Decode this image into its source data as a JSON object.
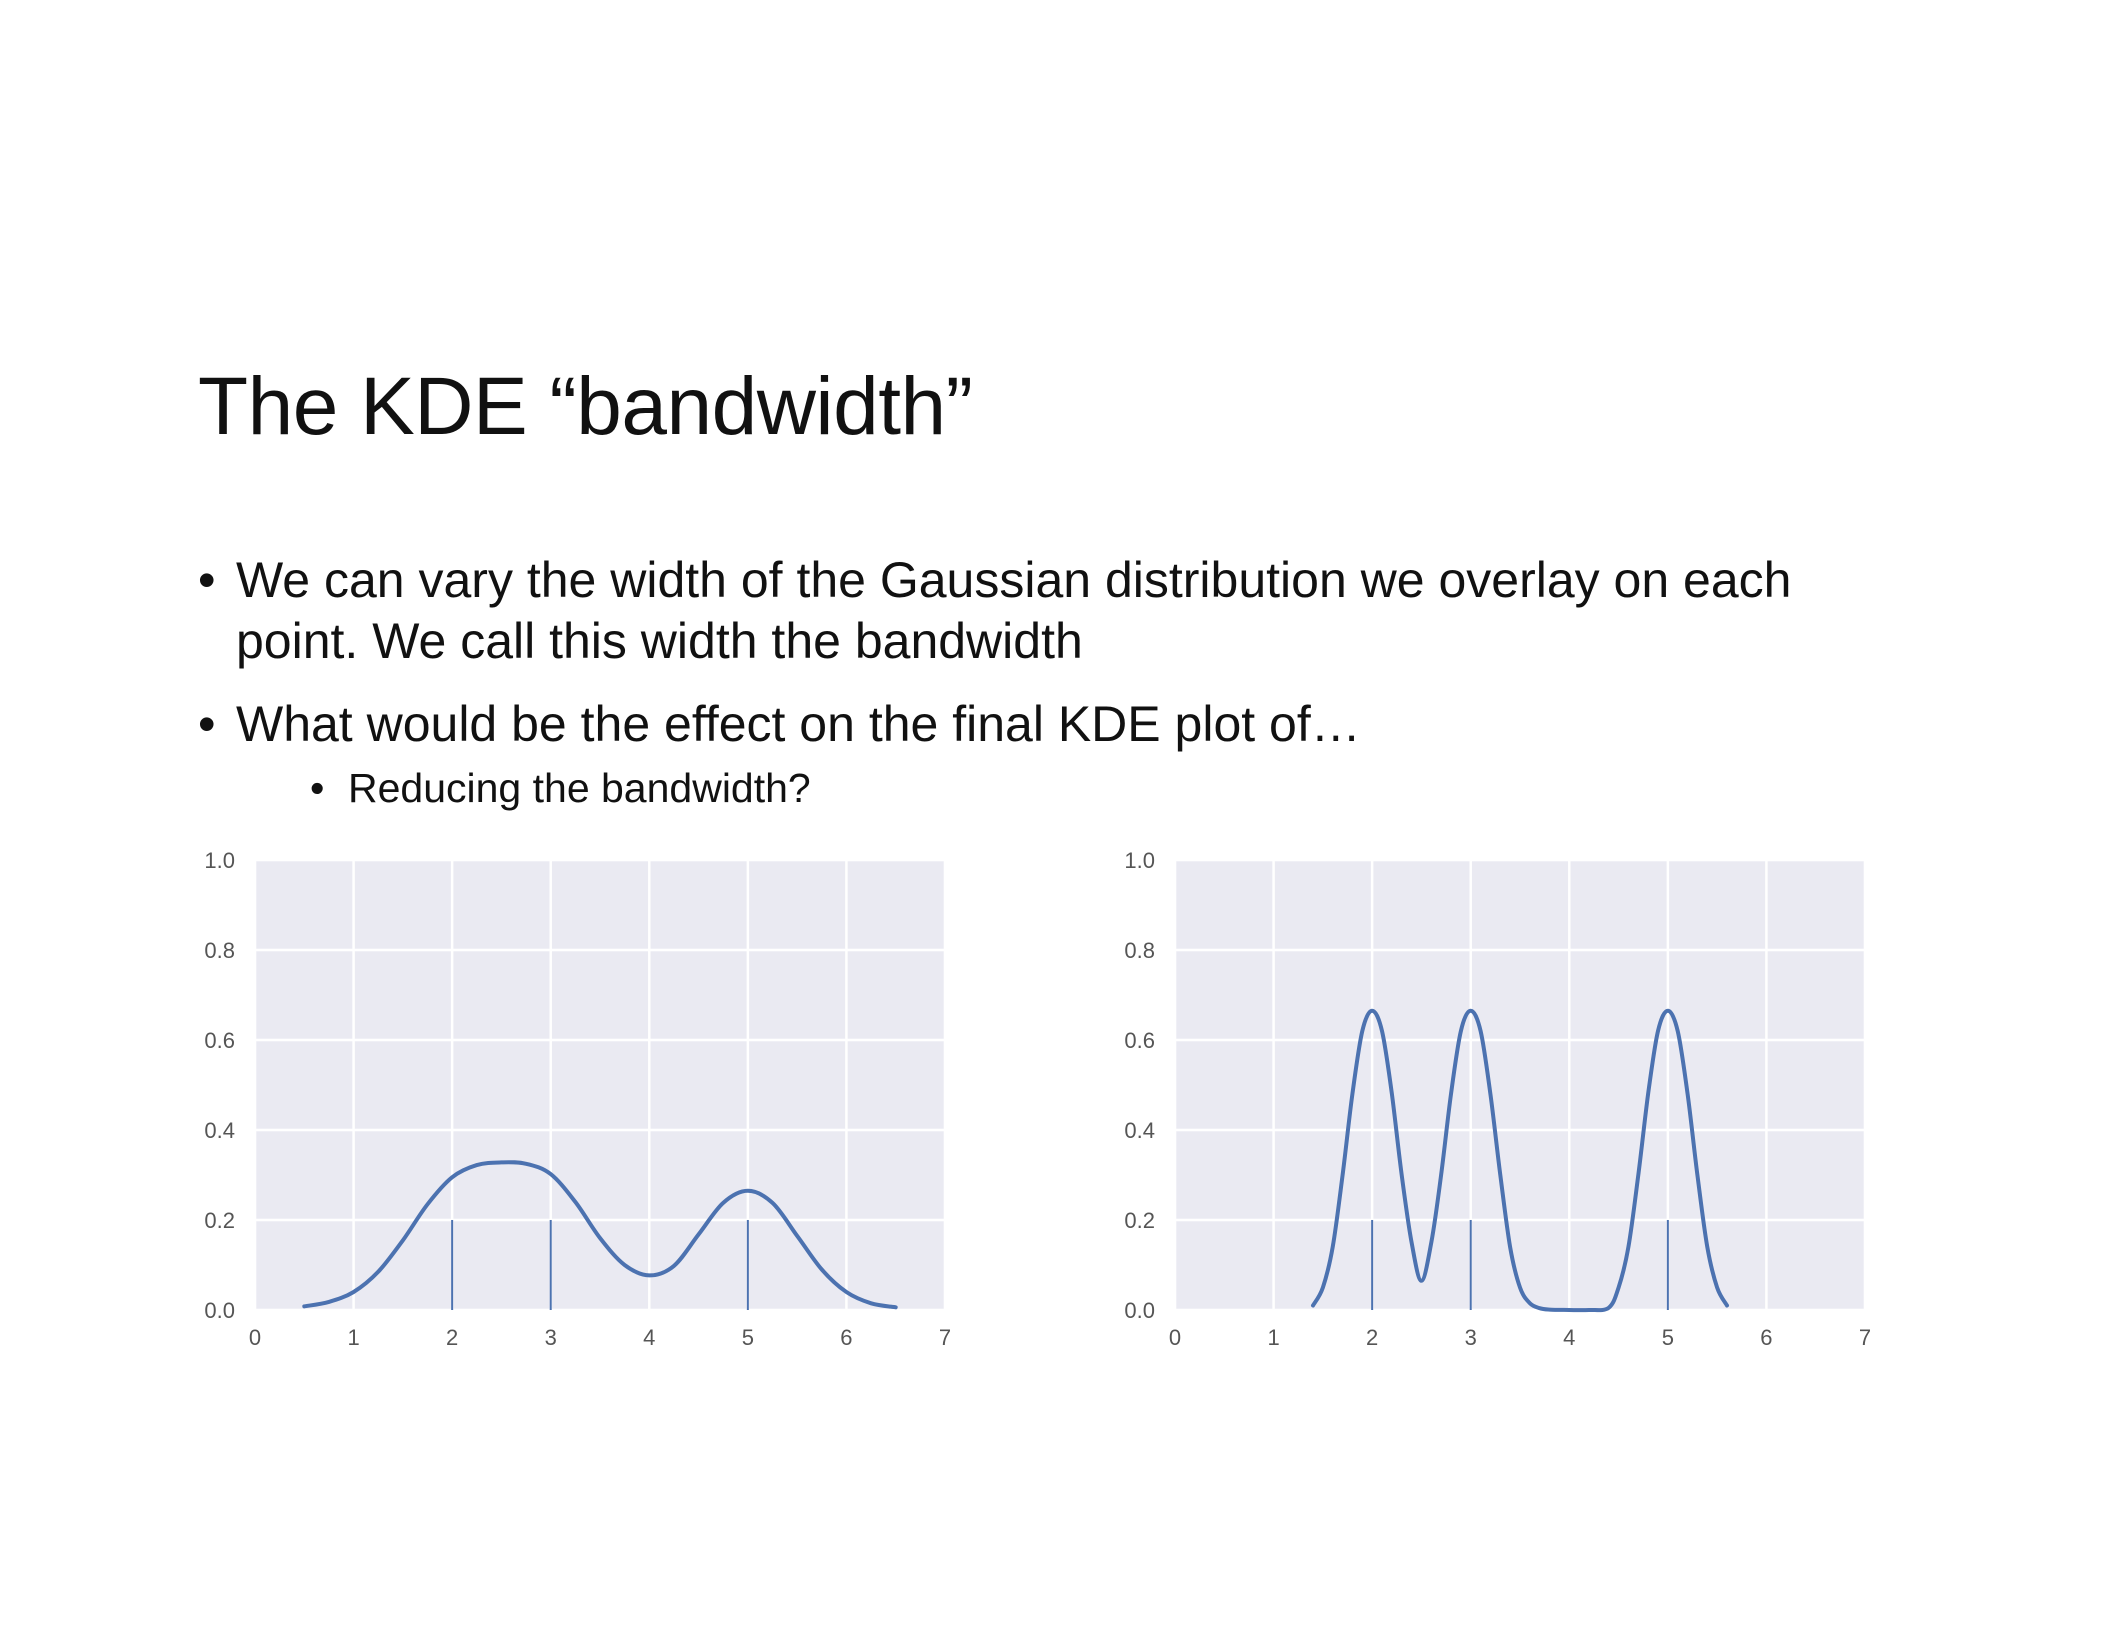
{
  "slide": {
    "title": "The KDE “bandwidth”",
    "bullets": [
      "We can vary the width of the Gaussian distribution we overlay on each point.  We call this width the bandwidth",
      "What would be the effect on the final KDE plot of…"
    ],
    "sub_bullets": [
      "Reducing the bandwidth?"
    ]
  },
  "colors": {
    "plot_background": "#eaeaf2",
    "grid": "#ffffff",
    "line": "#4c72b0"
  },
  "chart_data": [
    {
      "type": "line",
      "title": "",
      "xlabel": "",
      "ylabel": "",
      "xlim": [
        0,
        7
      ],
      "ylim": [
        0,
        1.0
      ],
      "x_ticks": [
        "0",
        "1",
        "2",
        "3",
        "4",
        "5",
        "6",
        "7"
      ],
      "y_ticks": [
        "0.0",
        "0.2",
        "0.4",
        "0.6",
        "0.8",
        "1.0"
      ],
      "grid": true,
      "rug": {
        "x": [
          2,
          3,
          5
        ],
        "height": 0.2
      },
      "series": [
        {
          "x": [
            0.5,
            0.75,
            1.0,
            1.25,
            1.5,
            1.75,
            2.0,
            2.25,
            2.5,
            2.75,
            3.0,
            3.25,
            3.5,
            3.75,
            4.0,
            4.25,
            4.5,
            4.75,
            5.0,
            5.25,
            5.5,
            5.75,
            6.0,
            6.25,
            6.5
          ],
          "y": [
            0.008,
            0.018,
            0.04,
            0.085,
            0.155,
            0.235,
            0.295,
            0.322,
            0.328,
            0.325,
            0.302,
            0.24,
            0.16,
            0.1,
            0.077,
            0.098,
            0.168,
            0.238,
            0.265,
            0.238,
            0.165,
            0.09,
            0.04,
            0.015,
            0.006
          ]
        }
      ]
    },
    {
      "type": "line",
      "title": "",
      "xlabel": "",
      "ylabel": "",
      "xlim": [
        0,
        7
      ],
      "ylim": [
        0,
        1.0
      ],
      "x_ticks": [
        "0",
        "1",
        "2",
        "3",
        "4",
        "5",
        "6",
        "7"
      ],
      "y_ticks": [
        "0.0",
        "0.2",
        "0.4",
        "0.6",
        "0.8",
        "1.0"
      ],
      "grid": true,
      "rug": {
        "x": [
          2,
          3,
          5
        ],
        "height": 0.2
      },
      "series": [
        {
          "x": [
            1.4,
            1.5,
            1.6,
            1.7,
            1.8,
            1.9,
            2.0,
            2.1,
            2.2,
            2.3,
            2.4,
            2.5,
            2.6,
            2.7,
            2.8,
            2.9,
            3.0,
            3.1,
            3.2,
            3.3,
            3.4,
            3.5,
            3.6,
            3.7,
            3.8,
            4.0,
            4.2,
            4.4,
            4.5,
            4.6,
            4.7,
            4.8,
            4.9,
            5.0,
            5.1,
            5.2,
            5.3,
            5.4,
            5.5,
            5.6
          ],
          "y": [
            0.01,
            0.05,
            0.14,
            0.3,
            0.48,
            0.62,
            0.665,
            0.62,
            0.48,
            0.3,
            0.15,
            0.065,
            0.15,
            0.3,
            0.48,
            0.62,
            0.665,
            0.62,
            0.48,
            0.3,
            0.14,
            0.05,
            0.015,
            0.004,
            0.001,
            0.0,
            0.0,
            0.005,
            0.05,
            0.14,
            0.3,
            0.48,
            0.62,
            0.665,
            0.62,
            0.48,
            0.3,
            0.14,
            0.05,
            0.01
          ]
        }
      ]
    }
  ]
}
